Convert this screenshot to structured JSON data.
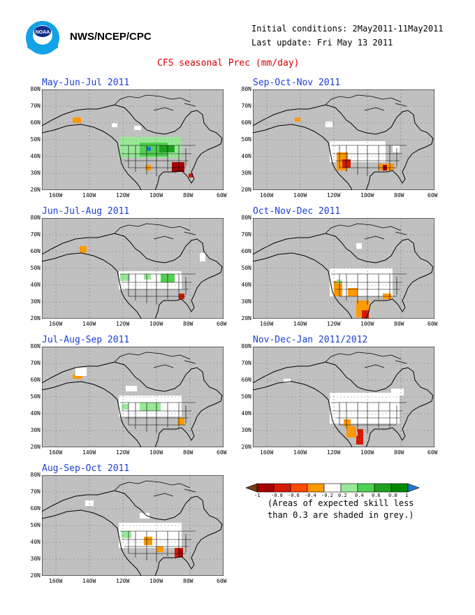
{
  "header": {
    "org": "NWS/NCEP/CPC",
    "initial_conditions": "Initial conditions: 2May2011-11May2011",
    "last_update": "Last update: Fri May 13 2011",
    "main_title": "CFS seasonal Prec (mm/day)"
  },
  "logo": {
    "icon": "noaa-logo-icon",
    "text": "NOAA"
  },
  "axis": {
    "lat_labels": [
      "80N",
      "70N",
      "60N",
      "50N",
      "40N",
      "30N",
      "20N"
    ],
    "lon_labels": [
      "160W",
      "140W",
      "120W",
      "100W",
      "80W",
      "60W"
    ]
  },
  "panels": [
    {
      "title": "May-Jun-Jul 2011"
    },
    {
      "title": "Sep-Oct-Nov 2011"
    },
    {
      "title": "Jun-Jul-Aug 2011"
    },
    {
      "title": "Oct-Nov-Dec 2011"
    },
    {
      "title": "Jul-Aug-Sep 2011"
    },
    {
      "title": "Nov-Dec-Jan 2011/2012"
    },
    {
      "title": "Aug-Sep-Oct 2011"
    }
  ],
  "colorbar": {
    "labels": [
      "-1",
      "-0.8",
      "-0.6",
      "-0.4",
      "-0.2",
      "0.2",
      "0.4",
      "0.6",
      "0.8",
      "1"
    ],
    "colors": [
      "#7a3a12",
      "#a50000",
      "#d41a00",
      "#ff4a00",
      "#ff9a00",
      "#ffffff",
      "#98e898",
      "#50d050",
      "#20a020",
      "#008800",
      "#1f77d0"
    ],
    "note_line1": "(Areas of expected skill less",
    "note_line2": "than 0.3 are shaded in grey.)"
  },
  "colors": {
    "skill_mask": "#c0c0c0",
    "title_blue": "#1a3ed6",
    "title_red": "#d40000"
  }
}
